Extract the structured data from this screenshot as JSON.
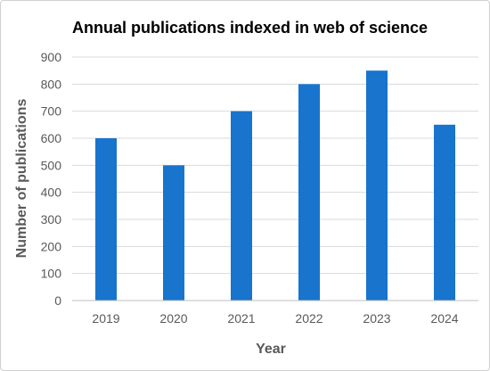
{
  "chart_data": {
    "type": "bar",
    "title": "Annual publications indexed in web of science",
    "xlabel": "Year",
    "ylabel": "Number of publications",
    "categories": [
      "2019",
      "2020",
      "2021",
      "2022",
      "2023",
      "2024"
    ],
    "values": [
      600,
      500,
      700,
      800,
      850,
      650
    ],
    "ylim": [
      0,
      900
    ],
    "yticks": [
      0,
      100,
      200,
      300,
      400,
      500,
      600,
      700,
      800,
      900
    ],
    "grid": true,
    "legend": "none",
    "colors": {
      "bar": "#1874CD",
      "grid": "#d9d9d9",
      "axis": "#bfbfbf",
      "tick_text": "#595959"
    }
  }
}
